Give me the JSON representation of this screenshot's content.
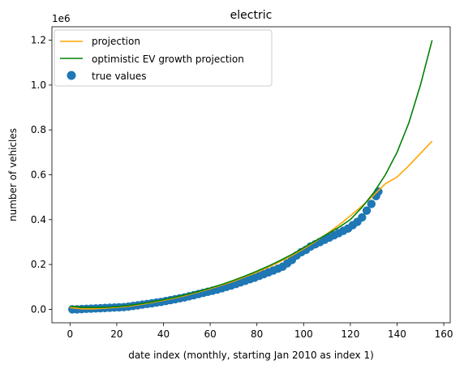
{
  "chart_data": {
    "type": "scatter",
    "title": "electric",
    "xlabel": "date index (monthly, starting Jan 2010 as index 1)",
    "ylabel": "number of vehicles",
    "y_offset_label": "1e6",
    "xlim": [
      -7.75,
      162.75
    ],
    "ylim": [
      -60000,
      1260000
    ],
    "x_ticks": [
      0,
      20,
      40,
      60,
      80,
      100,
      120,
      140,
      160
    ],
    "x_tick_labels": [
      "0",
      "20",
      "40",
      "60",
      "80",
      "100",
      "120",
      "140",
      "160"
    ],
    "y_ticks": [
      0,
      200000,
      400000,
      600000,
      800000,
      1000000,
      1200000
    ],
    "y_tick_labels": [
      "0.0",
      "0.2",
      "0.4",
      "0.6",
      "0.8",
      "1.0",
      "1.2"
    ],
    "legend_position": "upper-left",
    "series": [
      {
        "name": "projection",
        "kind": "line",
        "color": "#ffa500",
        "x": [
          0,
          5,
          10,
          15,
          20,
          25,
          30,
          35,
          40,
          45,
          50,
          55,
          60,
          65,
          70,
          75,
          80,
          85,
          90,
          95,
          100,
          105,
          110,
          115,
          120,
          125,
          130,
          135,
          140,
          145,
          150,
          155
        ],
        "y": [
          8000,
          2000,
          2000,
          5000,
          9000,
          14000,
          21000,
          30000,
          40000,
          51000,
          63000,
          77000,
          92000,
          108000,
          125000,
          145000,
          165000,
          188000,
          213000,
          240000,
          270000,
          302000,
          337000,
          375000,
          417000,
          461000,
          509000,
          560000,
          590000,
          640000,
          695000,
          750000
        ]
      },
      {
        "name": "optimistic EV growth projection",
        "kind": "line",
        "color": "#008000",
        "x": [
          0,
          5,
          10,
          15,
          20,
          25,
          30,
          35,
          40,
          45,
          50,
          55,
          60,
          65,
          70,
          75,
          80,
          85,
          90,
          95,
          100,
          105,
          110,
          115,
          120,
          125,
          130,
          135,
          140,
          145,
          150,
          155
        ],
        "y": [
          14000,
          10000,
          8000,
          9000,
          12000,
          17000,
          24000,
          33000,
          43000,
          54000,
          66000,
          80000,
          95000,
          111000,
          129000,
          149000,
          170000,
          193000,
          218000,
          245000,
          275000,
          305000,
          335000,
          365000,
          400000,
          455000,
          520000,
          600000,
          700000,
          830000,
          1000000,
          1200000
        ]
      },
      {
        "name": "true values",
        "kind": "scatter",
        "color": "#1f77b4",
        "x": [
          1,
          3,
          5,
          7,
          9,
          11,
          13,
          15,
          17,
          19,
          21,
          23,
          25,
          27,
          29,
          31,
          33,
          35,
          37,
          39,
          41,
          43,
          45,
          47,
          49,
          51,
          53,
          55,
          57,
          59,
          61,
          63,
          65,
          67,
          69,
          71,
          73,
          75,
          77,
          79,
          81,
          83,
          85,
          87,
          89,
          91,
          93,
          95,
          97,
          99,
          101,
          103,
          105,
          107,
          109,
          111,
          113,
          115,
          117,
          119,
          121,
          123,
          125,
          127,
          129,
          131,
          132
        ],
        "y": [
          0,
          0,
          1000,
          2000,
          3000,
          4000,
          5000,
          6000,
          7000,
          8000,
          9000,
          10000,
          12000,
          15000,
          18000,
          21000,
          24000,
          27000,
          30000,
          33000,
          37000,
          41000,
          45000,
          49000,
          53000,
          58000,
          63000,
          68000,
          73000,
          78000,
          83000,
          88000,
          94000,
          100000,
          106000,
          113000,
          120000,
          127000,
          134000,
          141000,
          149000,
          157000,
          165000,
          173000,
          181000,
          190000,
          205000,
          220000,
          240000,
          255000,
          265000,
          280000,
          290000,
          300000,
          310000,
          320000,
          330000,
          340000,
          350000,
          360000,
          375000,
          390000,
          410000,
          440000,
          470000,
          505000,
          525000
        ]
      }
    ]
  }
}
